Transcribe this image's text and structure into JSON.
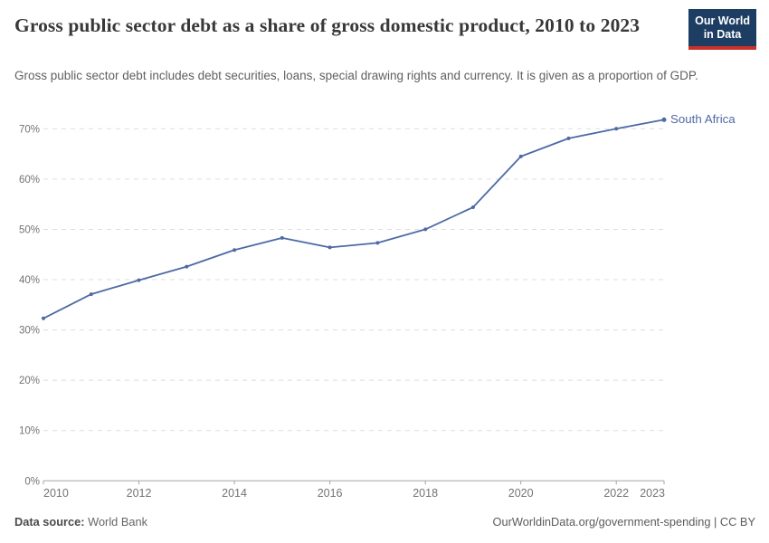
{
  "header": {
    "title": "Gross public sector debt as a share of gross domestic product, 2010 to 2023",
    "subtitle": "Gross public sector debt includes debt securities, loans, special drawing rights and currency. It is given as a proportion of GDP.",
    "logo": {
      "line1": "Our World",
      "line2": "in Data"
    }
  },
  "chart_data": {
    "type": "line",
    "title": "Gross public sector debt as a share of gross domestic product, 2010 to 2023",
    "x": [
      2010,
      2011,
      2012,
      2013,
      2014,
      2015,
      2016,
      2017,
      2018,
      2019,
      2020,
      2021,
      2022,
      2023
    ],
    "series": [
      {
        "name": "South Africa",
        "color": "#4d6aa5",
        "values": [
          32.3,
          37.1,
          39.9,
          42.6,
          45.9,
          48.3,
          46.4,
          47.3,
          50.0,
          54.4,
          64.5,
          68.1,
          70.0,
          71.8
        ]
      }
    ],
    "ylabel": "",
    "xlabel": "",
    "ylim": [
      0,
      70
    ],
    "yticks": [
      {
        "v": 0,
        "label": "0%"
      },
      {
        "v": 10,
        "label": "10%"
      },
      {
        "v": 20,
        "label": "20%"
      },
      {
        "v": 30,
        "label": "30%"
      },
      {
        "v": 40,
        "label": "40%"
      },
      {
        "v": 50,
        "label": "50%"
      },
      {
        "v": 60,
        "label": "60%"
      },
      {
        "v": 70,
        "label": "70%"
      }
    ],
    "xticks": [
      {
        "v": 2010,
        "label": "2010"
      },
      {
        "v": 2012,
        "label": "2012"
      },
      {
        "v": 2014,
        "label": "2014"
      },
      {
        "v": 2016,
        "label": "2016"
      },
      {
        "v": 2018,
        "label": "2018"
      },
      {
        "v": 2020,
        "label": "2020"
      },
      {
        "v": 2022,
        "label": "2022"
      },
      {
        "v": 2023,
        "label": "2023"
      }
    ],
    "grid": "horizontal-dashed",
    "legend_position": "end-of-line-label"
  },
  "footer": {
    "source_label": "Data source:",
    "source_value": "World Bank",
    "attribution": "OurWorldinData.org/government-spending | CC BY"
  },
  "colors": {
    "line": "#4d6aa5",
    "logo_bg": "#1d3d63",
    "logo_stripe": "#c9302c",
    "grid": "#dddddd",
    "axis": "#a5a5a5",
    "tick_text": "#737373",
    "title_text": "#383838",
    "subtitle_text": "#5f5f5f"
  }
}
